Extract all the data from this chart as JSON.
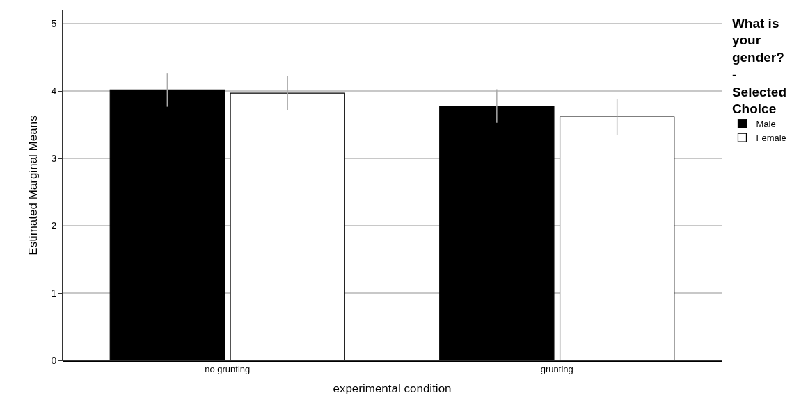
{
  "chart_data": {
    "type": "bar",
    "xlabel": "experimental condition",
    "ylabel": "Estimated Marginal Means",
    "legend_title": "What is your gender? - Selected Choice",
    "categories": [
      "no grunting",
      "grunting"
    ],
    "series": [
      {
        "name": "Male",
        "color": "#000000",
        "values": [
          4.02,
          3.78
        ],
        "errors": [
          0.25,
          0.25
        ]
      },
      {
        "name": "Female",
        "color": "#ffffff",
        "values": [
          3.97,
          3.62
        ],
        "errors": [
          0.25,
          0.27
        ]
      }
    ],
    "ylim": [
      0,
      5.2
    ],
    "yticks": [
      0,
      1,
      2,
      3,
      4,
      5
    ],
    "grid": "y",
    "legend": "right"
  }
}
